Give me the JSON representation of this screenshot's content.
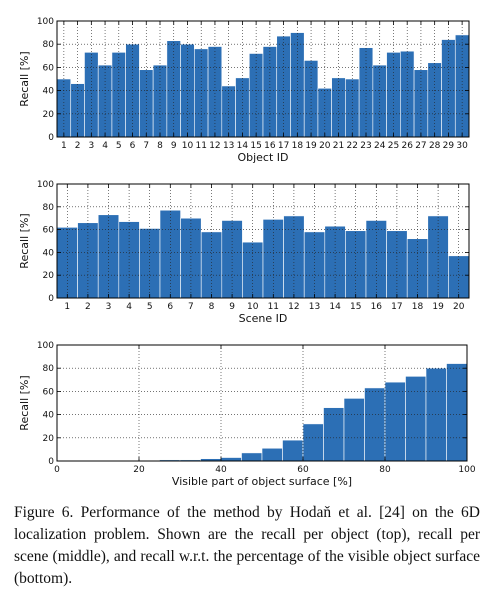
{
  "chart_data": [
    {
      "type": "bar",
      "xlabel": "Object ID",
      "ylabel": "Recall [%]",
      "ylim": [
        0,
        100
      ],
      "yticks": [
        0,
        20,
        40,
        60,
        80,
        100
      ],
      "grid": true,
      "color": "#2c6fb5",
      "categories": [
        "1",
        "2",
        "3",
        "4",
        "5",
        "6",
        "7",
        "8",
        "9",
        "10",
        "11",
        "12",
        "13",
        "14",
        "15",
        "16",
        "17",
        "18",
        "19",
        "20",
        "21",
        "22",
        "23",
        "24",
        "25",
        "26",
        "27",
        "28",
        "29",
        "30"
      ],
      "values": [
        50,
        46,
        73,
        62,
        73,
        80,
        58,
        62,
        83,
        80,
        76,
        78,
        44,
        51,
        72,
        78,
        87,
        90,
        66,
        42,
        51,
        50,
        77,
        62,
        73,
        74,
        58,
        64,
        84,
        88
      ]
    },
    {
      "type": "bar",
      "xlabel": "Scene ID",
      "ylabel": "Recall [%]",
      "ylim": [
        0,
        100
      ],
      "yticks": [
        0,
        20,
        40,
        60,
        80,
        100
      ],
      "grid": true,
      "color": "#2c6fb5",
      "categories": [
        "1",
        "2",
        "3",
        "4",
        "5",
        "6",
        "7",
        "8",
        "9",
        "10",
        "11",
        "12",
        "13",
        "14",
        "15",
        "16",
        "17",
        "18",
        "19",
        "20"
      ],
      "values": [
        62,
        66,
        73,
        67,
        61,
        77,
        70,
        58,
        68,
        49,
        69,
        72,
        58,
        63,
        59,
        68,
        59,
        52,
        72,
        37
      ]
    },
    {
      "type": "bar",
      "xlabel": "Visible part of object surface [%]",
      "ylabel": "Recall [%]",
      "xlim": [
        0,
        100
      ],
      "ylim": [
        0,
        100
      ],
      "xticks": [
        0,
        20,
        40,
        60,
        80,
        100
      ],
      "yticks": [
        0,
        20,
        40,
        60,
        80,
        100
      ],
      "grid": true,
      "color": "#2c6fb5",
      "bin_width": 5,
      "x": [
        0,
        5,
        10,
        15,
        20,
        25,
        30,
        35,
        40,
        45,
        50,
        55,
        60,
        65,
        70,
        75,
        80,
        85,
        90,
        95
      ],
      "values": [
        0,
        0,
        0,
        0,
        0,
        1,
        1,
        2,
        3,
        7,
        11,
        18,
        32,
        46,
        54,
        63,
        68,
        73,
        80,
        84
      ]
    }
  ],
  "caption": "Figure 6.  Performance of the method by Hodaň et al. [24] on the 6D localization problem. Shown are the recall per object (top), recall per scene (middle), and recall w.r.t. the percentage of the visible object surface (bottom)."
}
